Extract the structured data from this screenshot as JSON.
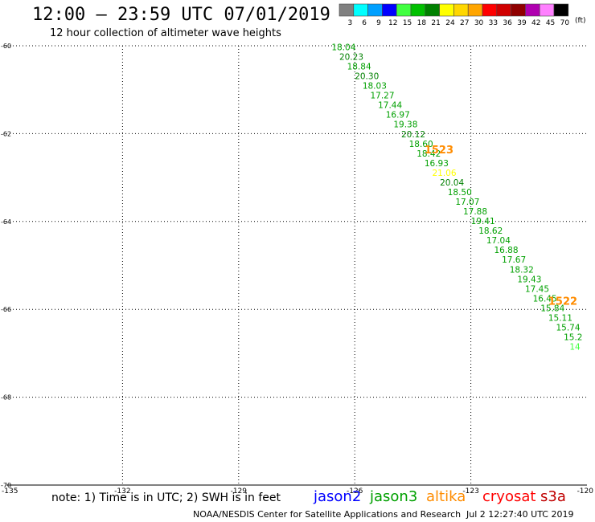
{
  "header": {
    "title": "12:00 – 23:59 UTC 07/01/2019",
    "subtitle": "12 hour collection of altimeter wave heights"
  },
  "color_scale": {
    "unit": "(ft)",
    "labels": [
      "3",
      "6",
      "9",
      "12",
      "15",
      "18",
      "21",
      "24",
      "27",
      "30",
      "33",
      "36",
      "39",
      "42",
      "45",
      "70"
    ],
    "colors": [
      "#808080",
      "#00ffff",
      "#00a0ff",
      "#0000ff",
      "#40ff40",
      "#00c000",
      "#008000",
      "#ffff00",
      "#ffd700",
      "#ffa500",
      "#ff0000",
      "#d00000",
      "#900000",
      "#b000b0",
      "#ff80ff",
      "#000000"
    ]
  },
  "map": {
    "lat_ticks": [
      "-60",
      "-62",
      "-64",
      "-66",
      "-68",
      "-70"
    ],
    "lon_ticks": [
      "-135",
      "-132",
      "-129",
      "-126",
      "-123",
      "-120"
    ],
    "lon_range": [
      -135,
      -120
    ],
    "lat_range": [
      -60,
      -70
    ],
    "grid": true,
    "track_labels": [
      {
        "id": "1523",
        "lon": -124.2,
        "lat": -62.45,
        "color": "#ff8c00"
      },
      {
        "id": "1522",
        "lon": -121.0,
        "lat": -65.9,
        "color": "#ff8c00"
      }
    ],
    "observations": [
      {
        "v": "18.04",
        "lon": -126.6,
        "lat": -60.1,
        "c": "#00a000"
      },
      {
        "v": "20.23",
        "lon": -126.4,
        "lat": -60.32,
        "c": "#008000"
      },
      {
        "v": "18.84",
        "lon": -126.2,
        "lat": -60.54,
        "c": "#00a000"
      },
      {
        "v": "20.30",
        "lon": -126.0,
        "lat": -60.76,
        "c": "#008000"
      },
      {
        "v": "18.03",
        "lon": -125.8,
        "lat": -60.98,
        "c": "#00a000"
      },
      {
        "v": "17.27",
        "lon": -125.6,
        "lat": -61.2,
        "c": "#00a000"
      },
      {
        "v": "17.44",
        "lon": -125.4,
        "lat": -61.42,
        "c": "#00a000"
      },
      {
        "v": "16.97",
        "lon": -125.2,
        "lat": -61.64,
        "c": "#00a000"
      },
      {
        "v": "19.38",
        "lon": -125.0,
        "lat": -61.86,
        "c": "#00a000"
      },
      {
        "v": "20.12",
        "lon": -124.8,
        "lat": -62.08,
        "c": "#008000"
      },
      {
        "v": "18.60",
        "lon": -124.6,
        "lat": -62.3,
        "c": "#00a000"
      },
      {
        "v": "18.42",
        "lon": -124.4,
        "lat": -62.52,
        "c": "#00a000"
      },
      {
        "v": "16.93",
        "lon": -124.2,
        "lat": -62.74,
        "c": "#00a000"
      },
      {
        "v": "21.06",
        "lon": -124.0,
        "lat": -62.96,
        "c": "#ffff00"
      },
      {
        "v": "20.04",
        "lon": -123.8,
        "lat": -63.18,
        "c": "#008000"
      },
      {
        "v": "18.50",
        "lon": -123.6,
        "lat": -63.4,
        "c": "#00a000"
      },
      {
        "v": "17.07",
        "lon": -123.4,
        "lat": -63.62,
        "c": "#00a000"
      },
      {
        "v": "17.88",
        "lon": -123.2,
        "lat": -63.84,
        "c": "#00a000"
      },
      {
        "v": "19.41",
        "lon": -123.0,
        "lat": -64.06,
        "c": "#00a000"
      },
      {
        "v": "18.62",
        "lon": -122.8,
        "lat": -64.28,
        "c": "#00a000"
      },
      {
        "v": "17.04",
        "lon": -122.6,
        "lat": -64.5,
        "c": "#00a000"
      },
      {
        "v": "16.88",
        "lon": -122.4,
        "lat": -64.72,
        "c": "#00a000"
      },
      {
        "v": "17.67",
        "lon": -122.2,
        "lat": -64.94,
        "c": "#00a000"
      },
      {
        "v": "18.32",
        "lon": -122.0,
        "lat": -65.16,
        "c": "#00a000"
      },
      {
        "v": "19.43",
        "lon": -121.8,
        "lat": -65.38,
        "c": "#00a000"
      },
      {
        "v": "17.45",
        "lon": -121.6,
        "lat": -65.6,
        "c": "#00a000"
      },
      {
        "v": "16.45",
        "lon": -121.4,
        "lat": -65.82,
        "c": "#00a000"
      },
      {
        "v": "15.84",
        "lon": -121.2,
        "lat": -66.04,
        "c": "#00a000"
      },
      {
        "v": "15.11",
        "lon": -121.0,
        "lat": -66.26,
        "c": "#00a000"
      },
      {
        "v": "15.74",
        "lon": -120.8,
        "lat": -66.48,
        "c": "#00a000"
      },
      {
        "v": "15.2",
        "lon": -120.6,
        "lat": -66.7,
        "c": "#00a000"
      },
      {
        "v": "14",
        "lon": -120.45,
        "lat": -66.92,
        "c": "#40ff40"
      }
    ]
  },
  "footer": {
    "note": "note: 1) Time is in UTC; 2) SWH is in feet",
    "credit": "NOAA/NESDIS Center for Satellite Applications and Research",
    "timestamp": "Jul  2 12:27:40 UTC 2019",
    "satellites": [
      {
        "name": "jason2",
        "color": "#0000ff"
      },
      {
        "name": "jason3",
        "color": "#00a000"
      },
      {
        "name": "altika",
        "color": "#ff8c00"
      },
      {
        "name": "cryosat",
        "color": "#ff0000"
      },
      {
        "name": "s3a",
        "color": "#c00000"
      }
    ]
  }
}
